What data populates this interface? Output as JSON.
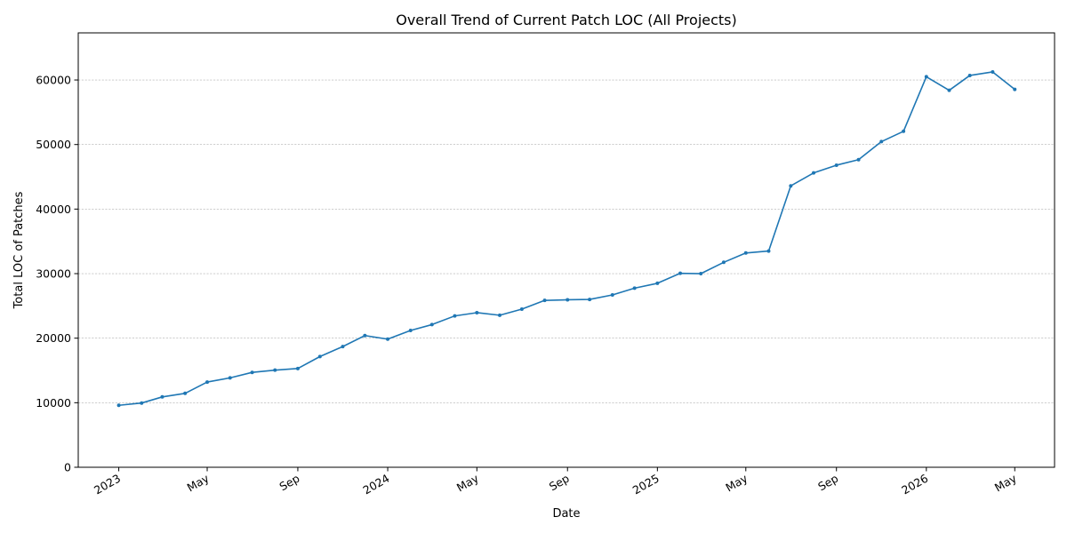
{
  "chart_data": {
    "type": "line",
    "title": "Overall Trend of Current Patch LOC (All Projects)",
    "xlabel": "Date",
    "ylabel": "Total LOC of Patches",
    "ylim": [
      0,
      67300
    ],
    "xlim": [
      "2022-11-07",
      "2026-06-24"
    ],
    "y_ticks": [
      0,
      10000,
      20000,
      30000,
      40000,
      50000,
      60000
    ],
    "x_ticks": [
      {
        "date": "2023-01-01",
        "label": "2023"
      },
      {
        "date": "2023-05-01",
        "label": "May"
      },
      {
        "date": "2023-09-01",
        "label": "Sep"
      },
      {
        "date": "2024-01-01",
        "label": "2024"
      },
      {
        "date": "2024-05-01",
        "label": "May"
      },
      {
        "date": "2024-09-01",
        "label": "Sep"
      },
      {
        "date": "2025-01-01",
        "label": "2025"
      },
      {
        "date": "2025-05-01",
        "label": "May"
      },
      {
        "date": "2025-09-01",
        "label": "Sep"
      },
      {
        "date": "2026-01-01",
        "label": "2026"
      },
      {
        "date": "2026-05-01",
        "label": "May"
      }
    ],
    "grid": "horizontal dashed",
    "series": [
      {
        "color": "#1f77b4",
        "x": [
          "2023-01-01",
          "2023-02-01",
          "2023-03-01",
          "2023-04-01",
          "2023-05-01",
          "2023-06-01",
          "2023-07-01",
          "2023-08-01",
          "2023-09-01",
          "2023-10-01",
          "2023-11-01",
          "2023-12-01",
          "2024-01-01",
          "2024-02-01",
          "2024-03-01",
          "2024-04-01",
          "2024-05-01",
          "2024-06-01",
          "2024-07-01",
          "2024-08-01",
          "2024-09-01",
          "2024-10-01",
          "2024-11-01",
          "2024-12-01",
          "2025-01-01",
          "2025-02-01",
          "2025-03-01",
          "2025-04-01",
          "2025-05-01",
          "2025-06-01",
          "2025-07-01",
          "2025-08-01",
          "2025-09-01",
          "2025-10-01",
          "2025-11-01",
          "2025-12-01",
          "2026-01-01",
          "2026-02-01",
          "2026-03-01",
          "2026-04-01",
          "2026-05-01"
        ],
        "y": [
          9600,
          9950,
          10900,
          11450,
          13200,
          13850,
          14700,
          15050,
          15300,
          17150,
          18700,
          20400,
          19850,
          21200,
          22100,
          23450,
          23950,
          23550,
          24500,
          25850,
          25950,
          26000,
          26700,
          27750,
          28500,
          30050,
          30000,
          31750,
          33200,
          33500,
          43600,
          45600,
          46800,
          47650,
          50450,
          52050,
          60500,
          58400,
          60700,
          61250,
          58550
        ]
      }
    ]
  }
}
